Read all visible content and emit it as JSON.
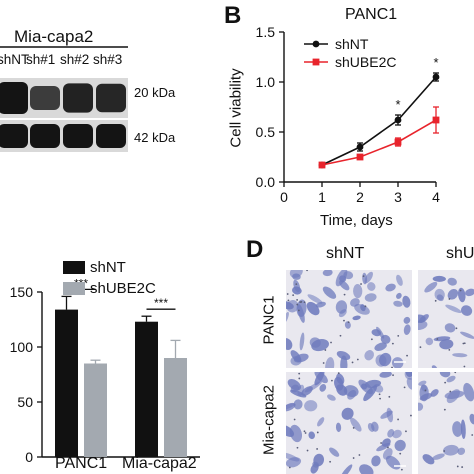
{
  "western_blot": {
    "cell_line": "Mia-capa2",
    "lanes": [
      "shNT",
      "sh#1",
      "sh#2",
      "sh#3"
    ],
    "bands": [
      {
        "marker": "20 kDa",
        "intensity": [
          1.0,
          0.55,
          0.85,
          0.8
        ]
      },
      {
        "marker": "42 kDa",
        "intensity": [
          1.0,
          1.0,
          1.0,
          1.0
        ]
      }
    ]
  },
  "panel_b": {
    "letter": "B",
    "title": "PANC1",
    "ylabel": "Cell viability",
    "xlabel": "Time, days",
    "star": "*"
  },
  "panel_c": {
    "legend": [
      "shNT",
      "shUBE2C"
    ],
    "significance": "***"
  },
  "panel_d": {
    "letter": "D",
    "col_headers": [
      "shNT",
      "shU"
    ],
    "row_labels": [
      "PANC1",
      "Mia-capa2"
    ]
  },
  "colors": {
    "shNT": "#111111",
    "shUBE2C": "#e8242c",
    "bar_shUBE2C": "#a3a9b0",
    "stain": "#6f7bbd"
  },
  "chart_data": [
    {
      "type": "line",
      "title": "PANC1",
      "xlabel": "Time, days",
      "ylabel": "Cell viability",
      "xlim": [
        0,
        4
      ],
      "ylim": [
        0,
        1.5
      ],
      "xticks": [
        0,
        1,
        2,
        3,
        4
      ],
      "yticks": [
        0.0,
        0.5,
        1.0,
        1.5
      ],
      "x": [
        1,
        2,
        3,
        4
      ],
      "series": [
        {
          "name": "shNT",
          "values": [
            0.17,
            0.35,
            0.62,
            1.05
          ],
          "error": [
            0.01,
            0.04,
            0.05,
            0.04
          ]
        },
        {
          "name": "shUBE2C",
          "values": [
            0.17,
            0.25,
            0.4,
            0.62
          ],
          "error": [
            0.01,
            0.02,
            0.04,
            0.13
          ]
        }
      ],
      "annotations": [
        {
          "x": 3,
          "text": "*"
        },
        {
          "x": 4,
          "text": "*"
        }
      ],
      "legend": "top-left"
    },
    {
      "type": "bar",
      "categories": [
        "PANC1",
        "Mia-capa2"
      ],
      "ylim": [
        0,
        150
      ],
      "yticks": [
        0,
        50,
        100,
        150
      ],
      "series": [
        {
          "name": "shNT",
          "values": [
            134,
            123
          ],
          "error": [
            12,
            5
          ]
        },
        {
          "name": "shUBE2C",
          "values": [
            85,
            90
          ],
          "error": [
            3,
            16
          ]
        }
      ],
      "annotations": [
        {
          "category": "PANC1",
          "text": "***"
        },
        {
          "category": "Mia-capa2",
          "text": "***"
        }
      ],
      "legend": "top-left"
    }
  ]
}
